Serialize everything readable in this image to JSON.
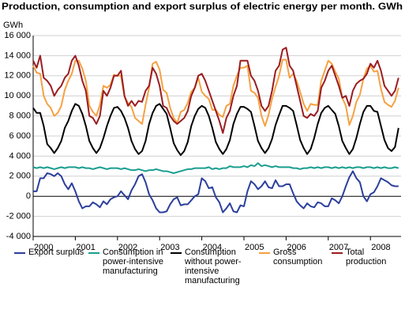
{
  "chart_data": {
    "type": "line",
    "title": "Production, consumption and export surplus of electric energy per month. GWh",
    "y_label": "GWh",
    "categories": [
      "2000",
      null,
      null,
      null,
      null,
      null,
      null,
      null,
      null,
      null,
      null,
      null,
      "2001",
      null,
      null,
      null,
      null,
      null,
      null,
      null,
      null,
      null,
      null,
      null,
      "2002",
      null,
      null,
      null,
      null,
      null,
      null,
      null,
      null,
      null,
      null,
      null,
      "2003",
      null,
      null,
      null,
      null,
      null,
      null,
      null,
      null,
      null,
      null,
      null,
      "2004",
      null,
      null,
      null,
      null,
      null,
      null,
      null,
      null,
      null,
      null,
      null,
      "2005",
      null,
      null,
      null,
      null,
      null,
      null,
      null,
      null,
      null,
      null,
      null,
      "2006",
      null,
      null,
      null,
      null,
      null,
      null,
      null,
      null,
      null,
      null,
      null,
      "2007",
      null,
      null,
      null,
      null,
      null,
      null,
      null,
      null,
      null,
      null,
      null,
      "2008",
      null,
      null,
      null,
      null,
      null,
      null,
      null,
      null
    ],
    "ylim": [
      -4000,
      16000
    ],
    "yticks": [
      {
        "value": -4000,
        "label": "-4 000"
      },
      {
        "value": -2000,
        "label": "-2 000"
      },
      0,
      {
        "value": 2000,
        "label": "2 000"
      },
      {
        "value": 4000,
        "label": "4 000"
      },
      {
        "value": 6000,
        "label": "6 000"
      },
      {
        "value": 8000,
        "label": "8 000"
      },
      {
        "value": 10000,
        "label": "10 000"
      },
      {
        "value": 12000,
        "label": "12 000"
      },
      {
        "value": 14000,
        "label": "14 000"
      },
      {
        "value": 16000,
        "label": "16 000"
      }
    ],
    "grid": true,
    "series": [
      {
        "name": "Export surplus",
        "color": "#2b3f9c",
        "values": [
          500,
          500,
          1800,
          1800,
          2300,
          2200,
          2000,
          2300,
          2000,
          1200,
          700,
          1300,
          500,
          -500,
          -1200,
          -1000,
          -1000,
          -600,
          -800,
          -1100,
          -500,
          -800,
          -300,
          -100,
          0,
          500,
          100,
          -300,
          600,
          1200,
          2000,
          2200,
          1400,
          200,
          -400,
          -1200,
          -1600,
          -1600,
          -1500,
          -800,
          -300,
          -100,
          -900,
          -800,
          -800,
          -400,
          0,
          200,
          1800,
          1500,
          800,
          900,
          -100,
          -600,
          -1600,
          -1200,
          -700,
          -1500,
          -1600,
          -900,
          -1000,
          500,
          1500,
          1200,
          700,
          1000,
          1500,
          900,
          800,
          1600,
          1000,
          1000,
          1200,
          1200,
          300,
          -500,
          -900,
          -1200,
          -700,
          -1000,
          -1100,
          -600,
          -700,
          -1000,
          -1000,
          -200,
          -400,
          -700,
          0,
          1000,
          1900,
          2500,
          1800,
          1400,
          0,
          -500,
          200,
          400,
          1000,
          1800,
          1600,
          1400,
          1100,
          1000,
          1000
        ]
      },
      {
        "name": "Consumption in power-intensive manufacturing",
        "color": "#1a9e8f",
        "values": [
          2900,
          2800,
          2900,
          2800,
          2900,
          2800,
          2700,
          2800,
          2900,
          2800,
          2900,
          2900,
          2900,
          2800,
          2900,
          2800,
          2800,
          2700,
          2800,
          2900,
          2800,
          2700,
          2800,
          2800,
          2800,
          2700,
          2800,
          2700,
          2600,
          2600,
          2700,
          2600,
          2500,
          2600,
          2600,
          2700,
          2600,
          2500,
          2500,
          2400,
          2300,
          2400,
          2500,
          2600,
          2700,
          2700,
          2800,
          2800,
          2800,
          2800,
          2900,
          2700,
          2800,
          2700,
          2800,
          2800,
          3000,
          2900,
          2900,
          2900,
          3000,
          2900,
          3100,
          3000,
          3300,
          3000,
          3100,
          3000,
          2900,
          3000,
          2900,
          2900,
          2900,
          2900,
          2800,
          2800,
          2700,
          2800,
          2800,
          2900,
          2800,
          2900,
          2800,
          2900,
          2900,
          2800,
          2900,
          2800,
          2900,
          2800,
          2900,
          2800,
          2900,
          2900,
          2800,
          2900,
          2900,
          2800,
          2900,
          2800,
          2900,
          2800,
          2800,
          2900,
          2800
        ]
      },
      {
        "name": "Consumption without power-intensive manufacturing",
        "color": "#000000",
        "values": [
          8800,
          8300,
          8300,
          7000,
          5200,
          4800,
          4300,
          4800,
          5500,
          6800,
          7500,
          8500,
          9200,
          9000,
          8200,
          7000,
          5500,
          4800,
          4300,
          4800,
          5800,
          7000,
          8000,
          8800,
          8900,
          8500,
          7800,
          6800,
          5500,
          4700,
          4200,
          4500,
          5500,
          7200,
          8300,
          9000,
          9200,
          8700,
          8200,
          6800,
          5300,
          4600,
          4100,
          4500,
          5400,
          7000,
          8000,
          8700,
          9000,
          8800,
          8000,
          6800,
          5400,
          4700,
          4200,
          4700,
          5600,
          7200,
          8200,
          8900,
          8900,
          8700,
          8400,
          7000,
          5500,
          4800,
          4300,
          4800,
          5700,
          7100,
          8100,
          9000,
          9000,
          8800,
          8500,
          7100,
          5600,
          4800,
          4200,
          4700,
          5800,
          7200,
          8300,
          8800,
          9000,
          8600,
          8200,
          7000,
          5500,
          4800,
          4200,
          4700,
          5800,
          7200,
          8400,
          9000,
          9000,
          8500,
          8400,
          7000,
          5600,
          4800,
          4500,
          4900,
          6800
        ]
      },
      {
        "name": "Gross consumption",
        "color": "#f5a142",
        "values": [
          13000,
          12300,
          12200,
          10000,
          9200,
          8800,
          8000,
          8300,
          9000,
          10600,
          11500,
          12200,
          13500,
          13500,
          12700,
          11500,
          9000,
          8400,
          8000,
          9100,
          11000,
          10800,
          11100,
          12100,
          12000,
          12000,
          9900,
          9300,
          8900,
          7800,
          7500,
          7200,
          9100,
          10800,
          13200,
          13400,
          12600,
          10600,
          10300,
          8800,
          7800,
          7300,
          8400,
          8600,
          9300,
          10400,
          10800,
          11800,
          10400,
          10000,
          9700,
          8600,
          8600,
          8100,
          7900,
          9000,
          9200,
          11000,
          12000,
          12800,
          12800,
          13000,
          10500,
          10300,
          9800,
          8000,
          7000,
          8100,
          9700,
          10900,
          12000,
          13600,
          13600,
          11800,
          12200,
          11500,
          10400,
          9200,
          8500,
          9200,
          9100,
          9100,
          11500,
          12500,
          13500,
          13200,
          12400,
          11700,
          9800,
          9000,
          7100,
          8000,
          9400,
          10100,
          11700,
          12700,
          13000,
          12400,
          12500,
          10700,
          9400,
          9100,
          8900,
          9500,
          10800
        ]
      },
      {
        "name": "Total production",
        "color": "#9b1c20",
        "values": [
          13500,
          12800,
          14000,
          11800,
          11500,
          11000,
          10000,
          10600,
          11000,
          11800,
          12200,
          13500,
          14000,
          13000,
          11500,
          10500,
          8000,
          7800,
          7200,
          8000,
          10500,
          10000,
          10800,
          12000,
          12000,
          12500,
          10000,
          9000,
          9500,
          9000,
          9500,
          9400,
          10500,
          11000,
          12800,
          12200,
          11000,
          9000,
          8800,
          8000,
          7500,
          7200,
          7500,
          7800,
          8500,
          10000,
          10800,
          12000,
          12200,
          11500,
          10500,
          9500,
          8500,
          7500,
          6300,
          7800,
          8500,
          10000,
          11000,
          13500,
          13500,
          13500,
          12000,
          11500,
          10500,
          9000,
          8500,
          9000,
          10500,
          12500,
          13000,
          14600,
          14800,
          13000,
          12500,
          11000,
          9500,
          8000,
          7800,
          8200,
          8000,
          8500,
          10800,
          11500,
          12500,
          13000,
          12000,
          11000,
          9800,
          10000,
          9000,
          10500,
          11200,
          11500,
          11700,
          12200,
          13200,
          12800,
          13500,
          12500,
          11000,
          10500,
          10000,
          10500,
          11800
        ]
      }
    ]
  }
}
